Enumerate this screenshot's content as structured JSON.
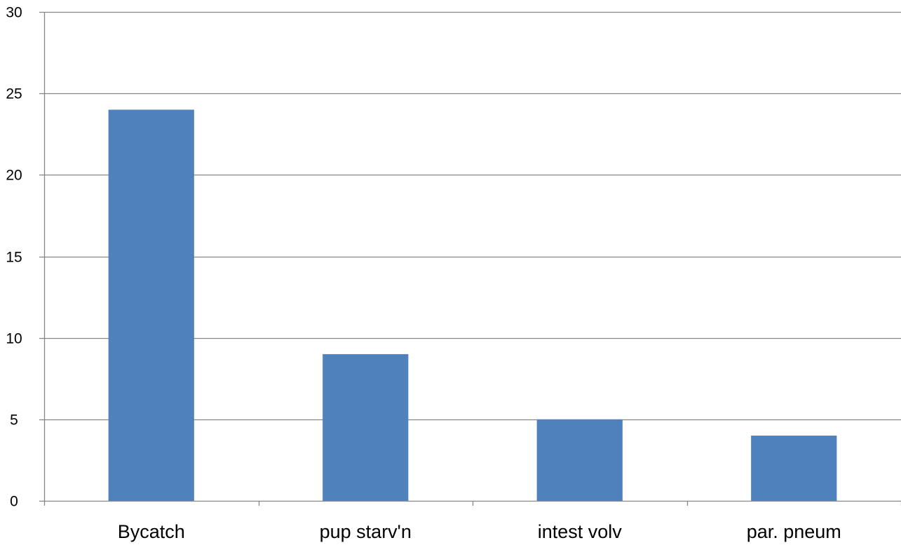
{
  "chart_data": {
    "type": "bar",
    "title": "",
    "xlabel": "",
    "ylabel": "",
    "categories": [
      "Bycatch",
      "pup starv'n",
      "intest volv",
      "par. pneum"
    ],
    "values": [
      24,
      9,
      5,
      4
    ],
    "ylim": [
      0,
      30
    ],
    "yticks": [
      0,
      5,
      10,
      15,
      20,
      25,
      30
    ],
    "grid": true,
    "legend": "none",
    "bar_color": "#4F81BD",
    "grid_color": "#868686",
    "axis_color": "#868686"
  }
}
